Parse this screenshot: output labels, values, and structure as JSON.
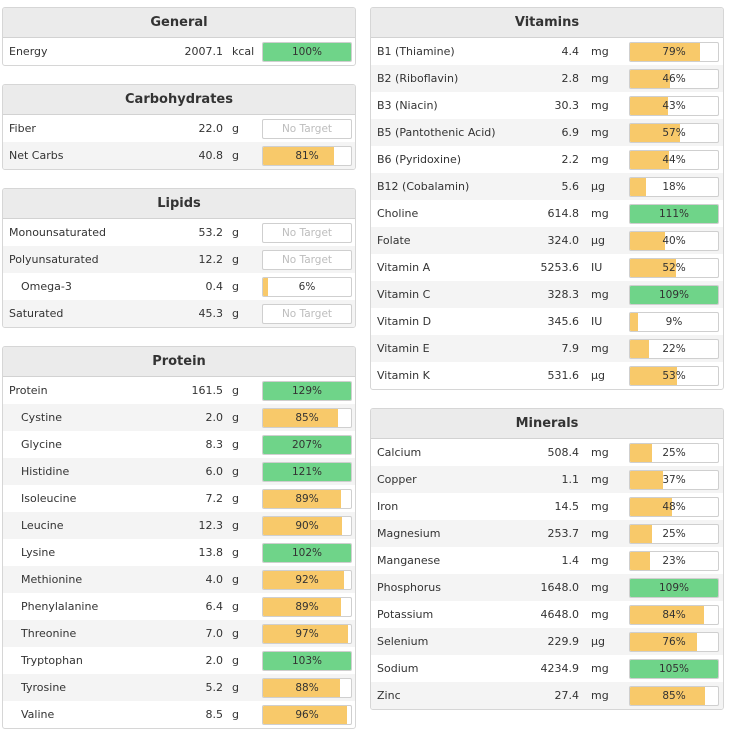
{
  "no_target_label": "No Target",
  "colors": {
    "partial": "#f8c96a",
    "complete": "#6fd489",
    "no_target_text": "#bdbdbd"
  },
  "panels": {
    "general": {
      "title": "General",
      "rows": [
        {
          "name": "Energy",
          "amount": "2007.1",
          "unit": "kcal",
          "pct": "100%",
          "progress": 1.0,
          "met": true
        }
      ]
    },
    "carbohydrates": {
      "title": "Carbohydrates",
      "rows": [
        {
          "name": "Fiber",
          "amount": "22.0",
          "unit": "g",
          "pct": null,
          "progress": 0,
          "met": false
        },
        {
          "name": "Net Carbs",
          "amount": "40.8",
          "unit": "g",
          "pct": "81%",
          "progress": 0.81,
          "met": false
        }
      ]
    },
    "lipids": {
      "title": "Lipids",
      "rows": [
        {
          "name": "Monounsaturated",
          "amount": "53.2",
          "unit": "g",
          "pct": null,
          "progress": 0,
          "met": false
        },
        {
          "name": "Polyunsaturated",
          "amount": "12.2",
          "unit": "g",
          "pct": null,
          "progress": 0,
          "met": false
        },
        {
          "name": "Omega-3",
          "amount": "0.4",
          "unit": "g",
          "pct": "6%",
          "progress": 0.06,
          "met": false,
          "indent": true
        },
        {
          "name": "Saturated",
          "amount": "45.3",
          "unit": "g",
          "pct": null,
          "progress": 0,
          "met": false
        }
      ]
    },
    "protein": {
      "title": "Protein",
      "rows": [
        {
          "name": "Protein",
          "amount": "161.5",
          "unit": "g",
          "pct": "129%",
          "progress": 1.0,
          "met": true
        },
        {
          "name": "Cystine",
          "amount": "2.0",
          "unit": "g",
          "pct": "85%",
          "progress": 0.85,
          "met": false,
          "indent": true
        },
        {
          "name": "Glycine",
          "amount": "8.3",
          "unit": "g",
          "pct": "207%",
          "progress": 1.0,
          "met": true,
          "indent": true
        },
        {
          "name": "Histidine",
          "amount": "6.0",
          "unit": "g",
          "pct": "121%",
          "progress": 1.0,
          "met": true,
          "indent": true
        },
        {
          "name": "Isoleucine",
          "amount": "7.2",
          "unit": "g",
          "pct": "89%",
          "progress": 0.89,
          "met": false,
          "indent": true
        },
        {
          "name": "Leucine",
          "amount": "12.3",
          "unit": "g",
          "pct": "90%",
          "progress": 0.9,
          "met": false,
          "indent": true
        },
        {
          "name": "Lysine",
          "amount": "13.8",
          "unit": "g",
          "pct": "102%",
          "progress": 1.0,
          "met": true,
          "indent": true
        },
        {
          "name": "Methionine",
          "amount": "4.0",
          "unit": "g",
          "pct": "92%",
          "progress": 0.92,
          "met": false,
          "indent": true
        },
        {
          "name": "Phenylalanine",
          "amount": "6.4",
          "unit": "g",
          "pct": "89%",
          "progress": 0.89,
          "met": false,
          "indent": true
        },
        {
          "name": "Threonine",
          "amount": "7.0",
          "unit": "g",
          "pct": "97%",
          "progress": 0.97,
          "met": false,
          "indent": true
        },
        {
          "name": "Tryptophan",
          "amount": "2.0",
          "unit": "g",
          "pct": "103%",
          "progress": 1.0,
          "met": true,
          "indent": true
        },
        {
          "name": "Tyrosine",
          "amount": "5.2",
          "unit": "g",
          "pct": "88%",
          "progress": 0.88,
          "met": false,
          "indent": true
        },
        {
          "name": "Valine",
          "amount": "8.5",
          "unit": "g",
          "pct": "96%",
          "progress": 0.96,
          "met": false,
          "indent": true
        }
      ]
    },
    "vitamins": {
      "title": "Vitamins",
      "rows": [
        {
          "name": "B1 (Thiamine)",
          "amount": "4.4",
          "unit": "mg",
          "pct": "79%",
          "progress": 0.79,
          "met": false
        },
        {
          "name": "B2 (Riboflavin)",
          "amount": "2.8",
          "unit": "mg",
          "pct": "46%",
          "progress": 0.46,
          "met": false
        },
        {
          "name": "B3 (Niacin)",
          "amount": "30.3",
          "unit": "mg",
          "pct": "43%",
          "progress": 0.43,
          "met": false
        },
        {
          "name": "B5 (Pantothenic Acid)",
          "amount": "6.9",
          "unit": "mg",
          "pct": "57%",
          "progress": 0.57,
          "met": false
        },
        {
          "name": "B6 (Pyridoxine)",
          "amount": "2.2",
          "unit": "mg",
          "pct": "44%",
          "progress": 0.44,
          "met": false
        },
        {
          "name": "B12 (Cobalamin)",
          "amount": "5.6",
          "unit": "µg",
          "pct": "18%",
          "progress": 0.18,
          "met": false
        },
        {
          "name": "Choline",
          "amount": "614.8",
          "unit": "mg",
          "pct": "111%",
          "progress": 1.0,
          "met": true
        },
        {
          "name": "Folate",
          "amount": "324.0",
          "unit": "µg",
          "pct": "40%",
          "progress": 0.4,
          "met": false
        },
        {
          "name": "Vitamin A",
          "amount": "5253.6",
          "unit": "IU",
          "pct": "52%",
          "progress": 0.52,
          "met": false
        },
        {
          "name": "Vitamin C",
          "amount": "328.3",
          "unit": "mg",
          "pct": "109%",
          "progress": 1.0,
          "met": true
        },
        {
          "name": "Vitamin D",
          "amount": "345.6",
          "unit": "IU",
          "pct": "9%",
          "progress": 0.09,
          "met": false
        },
        {
          "name": "Vitamin E",
          "amount": "7.9",
          "unit": "mg",
          "pct": "22%",
          "progress": 0.22,
          "met": false
        },
        {
          "name": "Vitamin K",
          "amount": "531.6",
          "unit": "µg",
          "pct": "53%",
          "progress": 0.53,
          "met": false
        }
      ]
    },
    "minerals": {
      "title": "Minerals",
      "rows": [
        {
          "name": "Calcium",
          "amount": "508.4",
          "unit": "mg",
          "pct": "25%",
          "progress": 0.25,
          "met": false
        },
        {
          "name": "Copper",
          "amount": "1.1",
          "unit": "mg",
          "pct": "37%",
          "progress": 0.37,
          "met": false
        },
        {
          "name": "Iron",
          "amount": "14.5",
          "unit": "mg",
          "pct": "48%",
          "progress": 0.48,
          "met": false
        },
        {
          "name": "Magnesium",
          "amount": "253.7",
          "unit": "mg",
          "pct": "25%",
          "progress": 0.25,
          "met": false
        },
        {
          "name": "Manganese",
          "amount": "1.4",
          "unit": "mg",
          "pct": "23%",
          "progress": 0.23,
          "met": false
        },
        {
          "name": "Phosphorus",
          "amount": "1648.0",
          "unit": "mg",
          "pct": "109%",
          "progress": 1.0,
          "met": true
        },
        {
          "name": "Potassium",
          "amount": "4648.0",
          "unit": "mg",
          "pct": "84%",
          "progress": 0.84,
          "met": false
        },
        {
          "name": "Selenium",
          "amount": "229.9",
          "unit": "µg",
          "pct": "76%",
          "progress": 0.76,
          "met": false
        },
        {
          "name": "Sodium",
          "amount": "4234.9",
          "unit": "mg",
          "pct": "105%",
          "progress": 1.0,
          "met": true
        },
        {
          "name": "Zinc",
          "amount": "27.4",
          "unit": "mg",
          "pct": "85%",
          "progress": 0.85,
          "met": false
        }
      ]
    }
  }
}
